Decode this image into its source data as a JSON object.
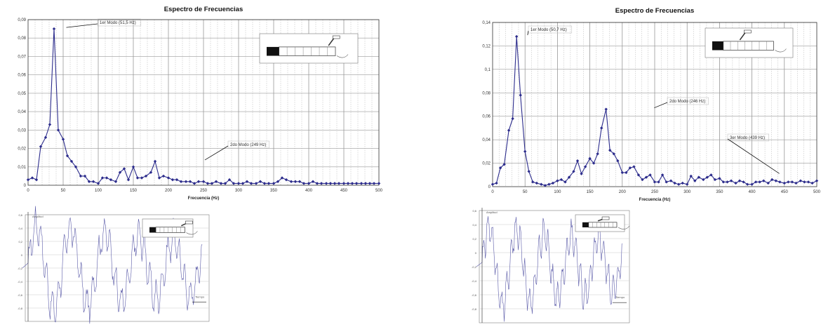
{
  "chart_data": [
    {
      "type": "line",
      "title": "Espectro de Frecuencias",
      "xlabel": "Frecuencia (Hz)",
      "ylabel": "",
      "xlim": [
        0,
        500
      ],
      "ylim": [
        0,
        0.09
      ],
      "x_ticks": [
        0,
        50,
        100,
        150,
        200,
        250,
        300,
        350,
        400,
        450,
        500
      ],
      "y_ticks": [
        "0",
        "0,01",
        "0,02",
        "0,03",
        "0,04",
        "0,05",
        "0,06",
        "0,07",
        "0,08",
        "0,09"
      ],
      "grid": true,
      "series": [
        {
          "x": [
            0,
            6,
            12,
            18,
            25,
            31,
            37,
            43,
            50,
            56,
            62,
            68,
            75,
            81,
            87,
            93,
            100,
            106,
            112,
            118,
            125,
            131,
            137,
            143,
            150,
            156,
            162,
            168,
            175,
            181,
            187,
            193,
            200,
            206,
            212,
            218,
            225,
            231,
            237,
            243,
            250,
            256,
            262,
            268,
            275,
            281,
            287,
            293,
            300,
            306,
            312,
            318,
            325,
            331,
            337,
            343,
            350,
            356,
            362,
            368,
            375,
            381,
            387,
            393,
            400,
            406,
            412,
            418,
            425,
            431,
            437,
            443,
            450,
            456,
            462,
            468,
            475,
            481,
            487,
            493,
            500
          ],
          "values": [
            0.003,
            0.004,
            0.003,
            0.021,
            0.026,
            0.033,
            0.085,
            0.03,
            0.025,
            0.016,
            0.013,
            0.01,
            0.005,
            0.005,
            0.002,
            0.002,
            0.001,
            0.004,
            0.004,
            0.003,
            0.002,
            0.007,
            0.009,
            0.003,
            0.01,
            0.004,
            0.004,
            0.005,
            0.007,
            0.013,
            0.004,
            0.005,
            0.004,
            0.003,
            0.003,
            0.002,
            0.002,
            0.002,
            0.001,
            0.002,
            0.002,
            0.001,
            0.001,
            0.002,
            0.001,
            0.001,
            0.003,
            0.001,
            0.001,
            0.001,
            0.002,
            0.001,
            0.001,
            0.002,
            0.001,
            0.001,
            0.001,
            0.002,
            0.004,
            0.003,
            0.002,
            0.002,
            0.002,
            0.001,
            0.001,
            0.002,
            0.001,
            0.001,
            0.001,
            0.001,
            0.001,
            0.001,
            0.001,
            0.001,
            0.001,
            0.001,
            0.001,
            0.001,
            0.001,
            0.001,
            0.001
          ]
        }
      ],
      "annotations": [
        {
          "text": "1er Modo (51,5 Hz)",
          "x": 51.5,
          "y": 0.085
        },
        {
          "text": "2do Modo (249 Hz)",
          "x": 249,
          "y": 0.013
        }
      ]
    },
    {
      "type": "line",
      "title": "Espectro de Frecuencias",
      "xlabel": "Frecuencia (Hz)",
      "ylabel": "",
      "xlim": [
        0,
        500
      ],
      "ylim": [
        0,
        0.14
      ],
      "x_ticks": [
        0,
        50,
        100,
        150,
        200,
        250,
        300,
        350,
        400,
        450,
        500
      ],
      "y_ticks": [
        "0",
        "0,02",
        "0,04",
        "0,06",
        "0,08",
        "0,1",
        "0,12",
        "0,14"
      ],
      "grid": true,
      "series": [
        {
          "x": [
            0,
            6,
            12,
            18,
            25,
            31,
            37,
            43,
            50,
            56,
            62,
            68,
            75,
            81,
            87,
            93,
            100,
            106,
            112,
            118,
            125,
            131,
            137,
            143,
            150,
            156,
            162,
            168,
            175,
            181,
            187,
            193,
            200,
            206,
            212,
            218,
            225,
            231,
            237,
            243,
            250,
            256,
            262,
            268,
            275,
            281,
            287,
            293,
            300,
            306,
            312,
            318,
            325,
            331,
            337,
            343,
            350,
            356,
            362,
            368,
            375,
            381,
            387,
            393,
            400,
            406,
            412,
            418,
            425,
            431,
            437,
            443,
            450,
            456,
            462,
            468,
            475,
            481,
            487,
            493,
            500
          ],
          "values": [
            0.002,
            0.003,
            0.016,
            0.019,
            0.048,
            0.058,
            0.128,
            0.078,
            0.03,
            0.013,
            0.004,
            0.003,
            0.002,
            0.001,
            0.002,
            0.003,
            0.005,
            0.006,
            0.004,
            0.008,
            0.013,
            0.022,
            0.011,
            0.017,
            0.024,
            0.02,
            0.028,
            0.05,
            0.066,
            0.031,
            0.028,
            0.022,
            0.012,
            0.012,
            0.016,
            0.017,
            0.01,
            0.006,
            0.008,
            0.01,
            0.004,
            0.004,
            0.01,
            0.004,
            0.005,
            0.003,
            0.002,
            0.003,
            0.002,
            0.009,
            0.005,
            0.008,
            0.006,
            0.008,
            0.01,
            0.006,
            0.007,
            0.004,
            0.004,
            0.005,
            0.003,
            0.005,
            0.004,
            0.002,
            0.002,
            0.004,
            0.004,
            0.005,
            0.003,
            0.006,
            0.005,
            0.004,
            0.003,
            0.004,
            0.004,
            0.003,
            0.005,
            0.004,
            0.004,
            0.003,
            0.005
          ]
        }
      ],
      "annotations": [
        {
          "text": "1er Modo (50,7 Hz)",
          "x": 50.7,
          "y": 0.128
        },
        {
          "text": "2do Modo (246 Hz)",
          "x": 246,
          "y": 0.066
        },
        {
          "text": "3er Modo (439 Hz)",
          "x": 439,
          "y": 0.01
        }
      ]
    }
  ],
  "time_plots": [
    {
      "ylabel": "Amplitud",
      "xlabel": "Tiempo"
    },
    {
      "ylabel": "Amplitud",
      "xlabel": "Tiempo"
    }
  ],
  "colors": {
    "series": "#2c2c8c",
    "grid": "#b5b5b5",
    "frame": "#333333"
  }
}
